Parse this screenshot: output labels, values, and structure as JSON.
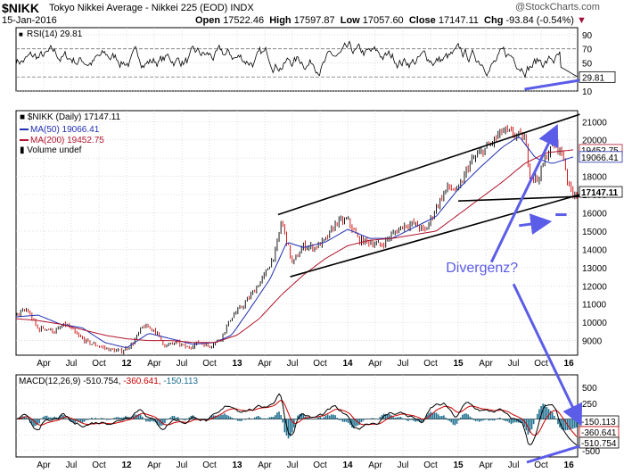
{
  "header": {
    "symbol": "$NIKK",
    "name": "Tokyo Nikkei Average - Nikkei 225 (EOD)",
    "exchange": "INDX",
    "date": "15-Jan-2016",
    "open_label": "Open",
    "open": "17522.46",
    "high_label": "High",
    "high": "17597.87",
    "low_label": "Low",
    "low": "17057.60",
    "close_label": "Close",
    "close": "17147.11",
    "chg_label": "Chg",
    "chg": "-93.84 (-0.54%)",
    "down_marker": "▼",
    "watermark": "@StockCharts.com"
  },
  "colors": {
    "price": "#000000",
    "ma50": "#1f2fb0",
    "ma200": "#b0142c",
    "arrow": "#5b5ce8",
    "macd_hist": "#1f6f8f",
    "grid": "#c8c8c8",
    "up": "#000000",
    "down": "#cc0000"
  },
  "chart_data": [
    {
      "type": "line",
      "panel": "rsi",
      "title": "RSI(14) 29.81",
      "ylim": [
        10,
        100
      ],
      "y_ticks": [
        90,
        70,
        50,
        30,
        10
      ],
      "reference_lines": [
        70,
        30
      ],
      "last_value": 29.81,
      "last_value_label": "29.81"
    },
    {
      "type": "line",
      "panel": "price",
      "title": "$NIKK (Daily) 17147.11",
      "ylim": [
        8200,
        21600
      ],
      "y_ticks": [
        9000,
        10000,
        11000,
        12000,
        13000,
        14000,
        15000,
        16000,
        17000,
        18000,
        19000,
        20000,
        21000
      ],
      "x_tick_labels": [
        "Apr",
        "Jul",
        "Oct",
        "12",
        "Apr",
        "Jul",
        "Oct",
        "13",
        "Apr",
        "Jul",
        "Oct",
        "14",
        "Apr",
        "Jul",
        "Oct",
        "15",
        "Apr",
        "Jul",
        "Oct",
        "16"
      ],
      "x_tick_positions_years": [
        2011.25,
        2011.5,
        2011.75,
        2012.0,
        2012.25,
        2012.5,
        2012.75,
        2013.0,
        2013.25,
        2013.5,
        2013.75,
        2014.0,
        2014.25,
        2014.5,
        2014.75,
        2015.0,
        2015.25,
        2015.5,
        2015.75,
        2016.0
      ],
      "x_range_years": [
        2011.0,
        2016.08
      ],
      "legend": [
        {
          "name": "$NIKK (Daily) 17147.11",
          "swatch": "bars"
        },
        {
          "name": "MA(50) 19066.41",
          "swatch": "#1f2fb0"
        },
        {
          "name": "MA(200) 19452.75",
          "swatch": "#b0142c"
        },
        {
          "name": "Volume undef",
          "swatch": "bars"
        }
      ],
      "series": [
        {
          "name": "$NIKK",
          "x": [
            2011.0,
            2011.1,
            2011.2,
            2011.25,
            2011.35,
            2011.45,
            2011.55,
            2011.65,
            2011.75,
            2011.85,
            2011.95,
            2012.05,
            2012.15,
            2012.25,
            2012.35,
            2012.45,
            2012.55,
            2012.65,
            2012.75,
            2012.85,
            2012.95,
            2013.05,
            2013.15,
            2013.25,
            2013.35,
            2013.4,
            2013.5,
            2013.6,
            2013.7,
            2013.8,
            2013.9,
            2014.0,
            2014.1,
            2014.2,
            2014.3,
            2014.4,
            2014.5,
            2014.6,
            2014.7,
            2014.8,
            2014.9,
            2015.0,
            2015.1,
            2015.2,
            2015.3,
            2015.4,
            2015.5,
            2015.6,
            2015.65,
            2015.72,
            2015.8,
            2015.88,
            2015.95,
            2016.0,
            2016.04
          ],
          "values": [
            10400,
            10700,
            9600,
            9700,
            9500,
            9900,
            9300,
            8900,
            8700,
            8500,
            8400,
            8800,
            9800,
            9600,
            8700,
            8900,
            8600,
            8900,
            8700,
            9100,
            10300,
            10900,
            11700,
            12600,
            13900,
            15600,
            13200,
            14200,
            14100,
            14500,
            15500,
            15600,
            14500,
            14400,
            14200,
            14800,
            15300,
            15400,
            15000,
            16300,
            17400,
            17200,
            18700,
            19300,
            19800,
            20500,
            20300,
            20100,
            18100,
            17800,
            19200,
            19800,
            19100,
            17400,
            17100
          ]
        },
        {
          "name": "MA(50) 19066.41",
          "x": [
            2011.0,
            2011.2,
            2011.4,
            2011.6,
            2011.8,
            2012.0,
            2012.2,
            2012.4,
            2012.6,
            2012.8,
            2012.95,
            2013.1,
            2013.3,
            2013.45,
            2013.6,
            2013.8,
            2014.0,
            2014.2,
            2014.4,
            2014.6,
            2014.8,
            2015.0,
            2015.2,
            2015.4,
            2015.55,
            2015.7,
            2015.85,
            2016.04
          ],
          "values": [
            10300,
            10400,
            9900,
            9700,
            8900,
            8600,
            9400,
            9100,
            8800,
            8900,
            9300,
            10600,
            12400,
            14400,
            14100,
            14400,
            15100,
            14600,
            14600,
            15200,
            15800,
            17300,
            18500,
            19600,
            20200,
            19000,
            18700,
            19066
          ]
        },
        {
          "name": "MA(200) 19452.75",
          "x": [
            2011.0,
            2011.2,
            2011.4,
            2011.6,
            2011.8,
            2012.0,
            2012.2,
            2012.4,
            2012.6,
            2012.8,
            2013.0,
            2013.2,
            2013.4,
            2013.6,
            2013.8,
            2014.0,
            2014.2,
            2014.4,
            2014.6,
            2014.8,
            2015.0,
            2015.2,
            2015.4,
            2015.6,
            2015.8,
            2016.04
          ],
          "values": [
            10200,
            10100,
            9900,
            9600,
            9300,
            9100,
            9000,
            9000,
            8900,
            8900,
            9300,
            10200,
            11500,
            12600,
            13500,
            14200,
            14500,
            14600,
            14800,
            15000,
            15900,
            16800,
            17700,
            18700,
            19300,
            19453
          ]
        }
      ],
      "price_labels": [
        "19452.75",
        "19066.41",
        "17147.11"
      ],
      "annotations": [
        {
          "type": "trendline",
          "label": "upper channel",
          "from": [
            2013.37,
            15900
          ],
          "to": [
            2016.1,
            21400
          ]
        },
        {
          "type": "trendline",
          "label": "lower channel",
          "from": [
            2013.48,
            12500
          ],
          "to": [
            2016.1,
            17000
          ]
        },
        {
          "type": "trendline",
          "label": "horizontal support",
          "from": [
            2015.0,
            16650
          ],
          "to": [
            2016.1,
            16900
          ]
        },
        {
          "type": "text",
          "label": "Divergenz?",
          "at": [
            2015.05,
            12750
          ]
        }
      ]
    },
    {
      "type": "line",
      "panel": "macd",
      "title": "MACD(12,26,9)",
      "macd_label": "-510.754",
      "signal_label": "-360.641",
      "histogram_label": "-150.113",
      "ylim": [
        -600,
        700
      ],
      "y_ticks": [
        500,
        250,
        0,
        -250,
        -500
      ],
      "last_values": {
        "histogram": -150.113,
        "signal": -360.641,
        "macd": -510.754
      }
    }
  ],
  "axis_labels": {
    "rsi": [
      "90",
      "70",
      "50",
      "30",
      "10"
    ],
    "price": [
      "21000",
      "20000",
      "19000",
      "18000",
      "17000",
      "16000",
      "15000",
      "14000",
      "13000",
      "12000",
      "11000",
      "10000",
      "9000"
    ],
    "macd": [
      "500",
      "250",
      "0",
      "-250",
      "-500"
    ],
    "months": [
      "Apr",
      "Jul",
      "Oct",
      "12",
      "Apr",
      "Jul",
      "Oct",
      "13",
      "Apr",
      "Jul",
      "Oct",
      "14",
      "Apr",
      "Jul",
      "Oct",
      "15",
      "Apr",
      "Jul",
      "Oct",
      "16"
    ]
  },
  "value_tags": {
    "rsi": "29.81",
    "ma200": "19452.75",
    "ma50": "19066.41",
    "close": "17147.11",
    "hist": "-150.113",
    "signal": "-360.641",
    "macd": "-510.754"
  },
  "annotation_text": "Divergenz?"
}
